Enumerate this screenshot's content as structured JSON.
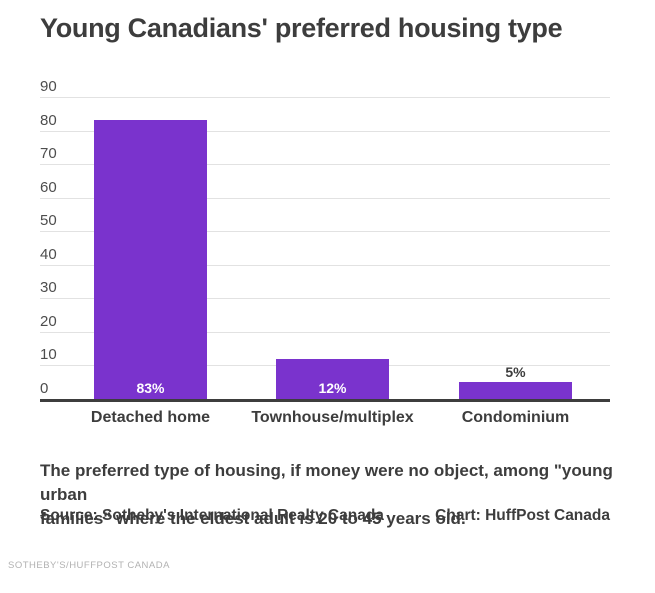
{
  "header": {
    "title": "Young Canadians' preferred housing type"
  },
  "chart_data": {
    "type": "bar",
    "title": "Young Canadians' preferred housing type",
    "categories": [
      "Detached home",
      "Townhouse/multiplex",
      "Condominium"
    ],
    "values": [
      83,
      12,
      5
    ],
    "value_labels": [
      "83%",
      "12%",
      "5%"
    ],
    "xlabel": "",
    "ylabel": "",
    "ylim": [
      0,
      90
    ],
    "yticks": [
      0,
      10,
      20,
      30,
      40,
      50,
      60,
      70,
      80,
      90
    ],
    "grid": true,
    "legend": false,
    "bar_color": "#7a33cd",
    "axis_color": "#3d3d3d",
    "gridline_color": "#e2e2e2",
    "tick_label_color": "#4d4d4d",
    "value_label_inside_color": "#ffffff",
    "value_label_outside_color": "#3d3d3d"
  },
  "notes": {
    "description_lines": [
      "The preferred type of housing, if money were no object, among \"young urban",
      "families\" where the eldest adult is 20 to 45 years old."
    ],
    "source": "Source: Sotheby's International Realty Canada",
    "chart_credit": "Chart: HuffPost Canada",
    "footer_credit": "SOTHEBY'S/HUFFPOST CANADA"
  }
}
